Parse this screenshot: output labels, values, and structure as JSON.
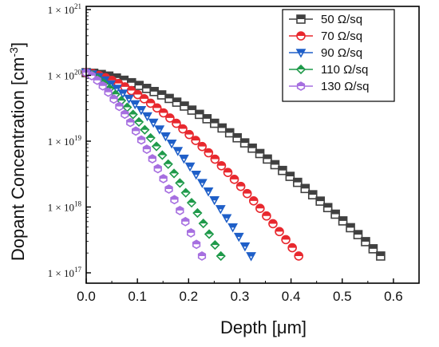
{
  "chart_data": {
    "type": "scatter",
    "xlabel": "Depth [μm]",
    "ylabel": "Dopant Concentration [cm",
    "ylabel_sup": "-3",
    "ylabel_end": "]",
    "yscale": "log",
    "xlim": [
      0,
      0.65
    ],
    "ylim": [
      1e+17,
      1e+21
    ],
    "xticks": [
      "0.0",
      "0.1",
      "0.2",
      "0.3",
      "0.4",
      "0.5",
      "0.6"
    ],
    "xtick_values": [
      0,
      0.1,
      0.2,
      0.3,
      0.4,
      0.5,
      0.6
    ],
    "yticks": [
      {
        "value": 1e+21,
        "base": "1 × 10",
        "exp": "21"
      },
      {
        "value": 1e+20,
        "base": "1 × 10",
        "exp": "20"
      },
      {
        "value": 1e+19,
        "base": "1 × 10",
        "exp": "19"
      },
      {
        "value": 1e+18,
        "base": "1 × 10",
        "exp": "18"
      },
      {
        "value": 1e+17,
        "base": "1 × 10",
        "exp": "17"
      }
    ],
    "legend_position": "top-right",
    "series": [
      {
        "name": "50 Ω/sq",
        "color": "#404040",
        "marker": "square",
        "xmax": 0.575,
        "n": 40,
        "shape_exp": 1.55
      },
      {
        "name": "70 Ω/sq",
        "color": "#e8282e",
        "marker": "circle",
        "xmax": 0.415,
        "n": 34,
        "shape_exp": 1.5
      },
      {
        "name": "90 Ω/sq",
        "color": "#1f5fc8",
        "marker": "triangle-down",
        "xmax": 0.322,
        "n": 28,
        "shape_exp": 1.45
      },
      {
        "name": "110 Ω/sq",
        "color": "#1f9a4a",
        "marker": "diamond",
        "xmax": 0.263,
        "n": 24,
        "shape_exp": 1.4
      },
      {
        "name": "130 Ω/sq",
        "color": "#a66fe0",
        "marker": "hexagon",
        "xmax": 0.226,
        "n": 22,
        "shape_exp": 1.35
      }
    ],
    "y_start": 1.1e+20,
    "y_end": 1.8e+17
  }
}
